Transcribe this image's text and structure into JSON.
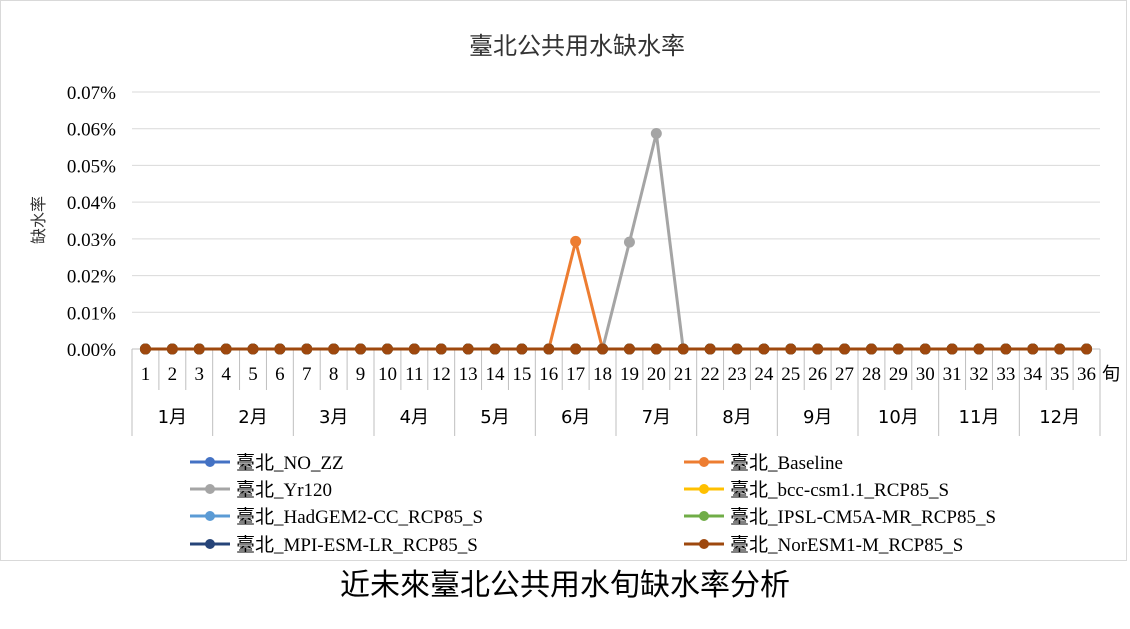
{
  "caption": "近未來臺北公共用水旬缺水率分析",
  "chart_data": {
    "type": "line",
    "title": "臺北公共用水缺水率",
    "ylabel": "缺水率",
    "x_unit": "旬",
    "x": [
      1,
      2,
      3,
      4,
      5,
      6,
      7,
      8,
      9,
      10,
      11,
      12,
      13,
      14,
      15,
      16,
      17,
      18,
      19,
      20,
      21,
      22,
      23,
      24,
      25,
      26,
      27,
      28,
      29,
      30,
      31,
      32,
      33,
      34,
      35,
      36
    ],
    "months": [
      "1月",
      "2月",
      "3月",
      "4月",
      "5月",
      "6月",
      "7月",
      "8月",
      "9月",
      "10月",
      "11月",
      "12月"
    ],
    "ylim": [
      0,
      0.07
    ],
    "yticks": [
      "0.00%",
      "0.01%",
      "0.02%",
      "0.03%",
      "0.04%",
      "0.05%",
      "0.06%",
      "0.07%"
    ],
    "grid": true,
    "legend_position": "bottom",
    "series": [
      {
        "name": "臺北_NO_ZZ",
        "color": "#4472c4",
        "values": [
          0,
          0,
          0,
          0,
          0,
          0,
          0,
          0,
          0,
          0,
          0,
          0,
          0,
          0,
          0,
          0,
          0,
          0,
          0,
          0,
          0,
          0,
          0,
          0,
          0,
          0,
          0,
          0,
          0,
          0,
          0,
          0,
          0,
          0,
          0,
          0
        ]
      },
      {
        "name": "臺北_Baseline",
        "color": "#ed7d31",
        "values": [
          0,
          0,
          0,
          0,
          0,
          0,
          0,
          0,
          0,
          0,
          0,
          0,
          0,
          0,
          0,
          0,
          0.0293,
          0,
          0,
          0,
          0,
          0,
          0,
          0,
          0,
          0,
          0,
          0,
          0,
          0,
          0,
          0,
          0,
          0,
          0,
          0
        ]
      },
      {
        "name": "臺北_Yr120",
        "color": "#a5a5a5",
        "values": [
          0,
          0,
          0,
          0,
          0,
          0,
          0,
          0,
          0,
          0,
          0,
          0,
          0,
          0,
          0,
          0,
          0,
          0,
          0.0291,
          0.0587,
          0,
          0,
          0,
          0,
          0,
          0,
          0,
          0,
          0,
          0,
          0,
          0,
          0,
          0,
          0,
          0
        ]
      },
      {
        "name": "臺北_bcc-csm1.1_RCP85_S",
        "color": "#ffc000",
        "values": [
          0,
          0,
          0,
          0,
          0,
          0,
          0,
          0,
          0,
          0,
          0,
          0,
          0,
          0,
          0,
          0,
          0,
          0,
          0,
          0,
          0,
          0,
          0,
          0,
          0,
          0,
          0,
          0,
          0,
          0,
          0,
          0,
          0,
          0,
          0,
          0
        ]
      },
      {
        "name": "臺北_HadGEM2-CC_RCP85_S",
        "color": "#5b9bd5",
        "values": [
          0,
          0,
          0,
          0,
          0,
          0,
          0,
          0,
          0,
          0,
          0,
          0,
          0,
          0,
          0,
          0,
          0,
          0,
          0,
          0,
          0,
          0,
          0,
          0,
          0,
          0,
          0,
          0,
          0,
          0,
          0,
          0,
          0,
          0,
          0,
          0
        ]
      },
      {
        "name": "臺北_IPSL-CM5A-MR_RCP85_S",
        "color": "#70ad47",
        "values": [
          0,
          0,
          0,
          0,
          0,
          0,
          0,
          0,
          0,
          0,
          0,
          0,
          0,
          0,
          0,
          0,
          0,
          0,
          0,
          0,
          0,
          0,
          0,
          0,
          0,
          0,
          0,
          0,
          0,
          0,
          0,
          0,
          0,
          0,
          0,
          0
        ]
      },
      {
        "name": "臺北_MPI-ESM-LR_RCP85_S",
        "color": "#264478",
        "values": [
          0,
          0,
          0,
          0,
          0,
          0,
          0,
          0,
          0,
          0,
          0,
          0,
          0,
          0,
          0,
          0,
          0,
          0,
          0,
          0,
          0,
          0,
          0,
          0,
          0,
          0,
          0,
          0,
          0,
          0,
          0,
          0,
          0,
          0,
          0,
          0
        ]
      },
      {
        "name": "臺北_NorESM1-M_RCP85_S",
        "color": "#9e480e",
        "values": [
          0,
          0,
          0,
          0,
          0,
          0,
          0,
          0,
          0,
          0,
          0,
          0,
          0,
          0,
          0,
          0,
          0,
          0,
          0,
          0,
          0,
          0,
          0,
          0,
          0,
          0,
          0,
          0,
          0,
          0,
          0,
          0,
          0,
          0,
          0,
          0
        ]
      }
    ]
  }
}
